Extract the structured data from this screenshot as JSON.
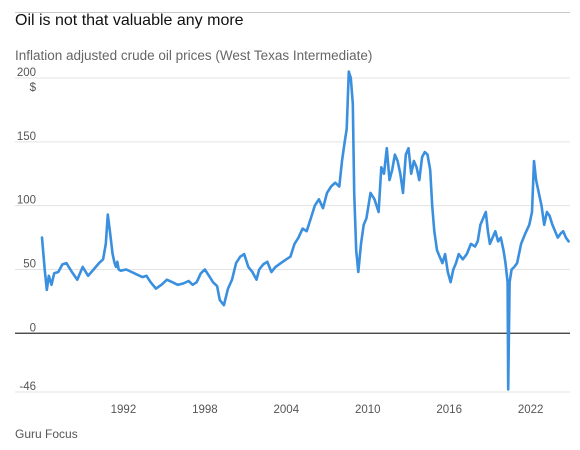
{
  "header": {
    "title": "Oil is not that valuable any more",
    "subtitle": "Inflation adjusted crude oil prices (West Texas Intermediate)"
  },
  "footer": {
    "source": "Guru Focus"
  },
  "chart_data": {
    "type": "line",
    "title": "Oil is not that valuable any more",
    "subtitle": "Inflation adjusted crude oil prices (West Texas Intermediate)",
    "xlabel": "",
    "ylabel": "$",
    "ylim": [
      -46,
      200
    ],
    "xlim": [
      1986.0,
      2024.9
    ],
    "yticks": [
      200,
      150,
      100,
      50,
      0,
      -46
    ],
    "xticks": [
      1992,
      1998,
      2004,
      2010,
      2016,
      2022
    ],
    "grid": "horizontal",
    "colors": {
      "line": "#3b8fdf",
      "zero_line": "#333333",
      "grid": "#e3e3e3"
    },
    "series": [
      {
        "x": [
          1986.0,
          1986.2,
          1986.35,
          1986.5,
          1986.7,
          1986.9,
          1987.2,
          1987.5,
          1987.8,
          1988.2,
          1988.6,
          1989.0,
          1989.4,
          1989.8,
          1990.2,
          1990.5,
          1990.7,
          1990.85,
          1991.0,
          1991.2,
          1991.35,
          1991.45,
          1991.55,
          1991.65,
          1991.8,
          1992.2,
          1992.6,
          1993.0,
          1993.4,
          1993.7,
          1994.0,
          1994.4,
          1994.8,
          1995.2,
          1995.6,
          1996.0,
          1996.4,
          1996.8,
          1997.1,
          1997.4,
          1997.7,
          1998.0,
          1998.3,
          1998.6,
          1998.9,
          1999.1,
          1999.4,
          1999.7,
          2000.0,
          2000.3,
          2000.6,
          2000.9,
          2001.2,
          2001.5,
          2001.8,
          2002.0,
          2002.3,
          2002.6,
          2002.9,
          2003.2,
          2003.6,
          2004.0,
          2004.3,
          2004.6,
          2004.9,
          2005.2,
          2005.5,
          2005.8,
          2006.1,
          2006.4,
          2006.7,
          2007.0,
          2007.3,
          2007.6,
          2007.9,
          2008.1,
          2008.3,
          2008.45,
          2008.6,
          2008.75,
          2008.9,
          2009.0,
          2009.15,
          2009.3,
          2009.5,
          2009.7,
          2009.9,
          2010.2,
          2010.5,
          2010.8,
          2011.0,
          2011.2,
          2011.4,
          2011.6,
          2011.8,
          2012.0,
          2012.2,
          2012.4,
          2012.6,
          2012.8,
          2013.0,
          2013.2,
          2013.4,
          2013.6,
          2013.8,
          2014.0,
          2014.2,
          2014.4,
          2014.6,
          2014.75,
          2014.9,
          2015.1,
          2015.3,
          2015.5,
          2015.7,
          2015.9,
          2016.1,
          2016.3,
          2016.5,
          2016.7,
          2017.0,
          2017.3,
          2017.6,
          2017.9,
          2018.1,
          2018.3,
          2018.5,
          2018.7,
          2018.85,
          2019.0,
          2019.2,
          2019.4,
          2019.6,
          2019.8,
          2020.0,
          2020.15,
          2020.3,
          2020.35,
          2020.45,
          2020.6,
          2020.8,
          2021.0,
          2021.3,
          2021.6,
          2021.9,
          2022.1,
          2022.25,
          2022.4,
          2022.6,
          2022.8,
          2023.0,
          2023.2,
          2023.4,
          2023.6,
          2023.8,
          2024.0,
          2024.2,
          2024.4,
          2024.6,
          2024.8
        ],
        "values": [
          75,
          50,
          34,
          45,
          38,
          47,
          48,
          54,
          55,
          48,
          42,
          52,
          45,
          50,
          55,
          58,
          70,
          93,
          80,
          62,
          55,
          52,
          56,
          50,
          49,
          50,
          48,
          46,
          44,
          45,
          40,
          35,
          38,
          42,
          40,
          38,
          39,
          41,
          38,
          40,
          47,
          50,
          45,
          40,
          37,
          26,
          22,
          35,
          42,
          55,
          60,
          62,
          52,
          48,
          42,
          50,
          54,
          56,
          48,
          52,
          55,
          58,
          60,
          70,
          75,
          82,
          80,
          90,
          100,
          105,
          98,
          110,
          115,
          118,
          115,
          135,
          150,
          160,
          205,
          200,
          180,
          110,
          65,
          48,
          70,
          85,
          90,
          110,
          105,
          95,
          130,
          125,
          145,
          120,
          128,
          140,
          135,
          125,
          110,
          140,
          145,
          125,
          135,
          130,
          120,
          138,
          142,
          140,
          128,
          100,
          80,
          65,
          60,
          55,
          62,
          48,
          40,
          50,
          55,
          62,
          58,
          62,
          70,
          68,
          72,
          85,
          90,
          95,
          80,
          70,
          75,
          80,
          72,
          75,
          65,
          55,
          40,
          -44,
          40,
          50,
          52,
          55,
          70,
          78,
          85,
          95,
          135,
          120,
          110,
          100,
          85,
          95,
          92,
          85,
          80,
          75,
          78,
          80,
          75,
          72
        ]
      }
    ]
  }
}
